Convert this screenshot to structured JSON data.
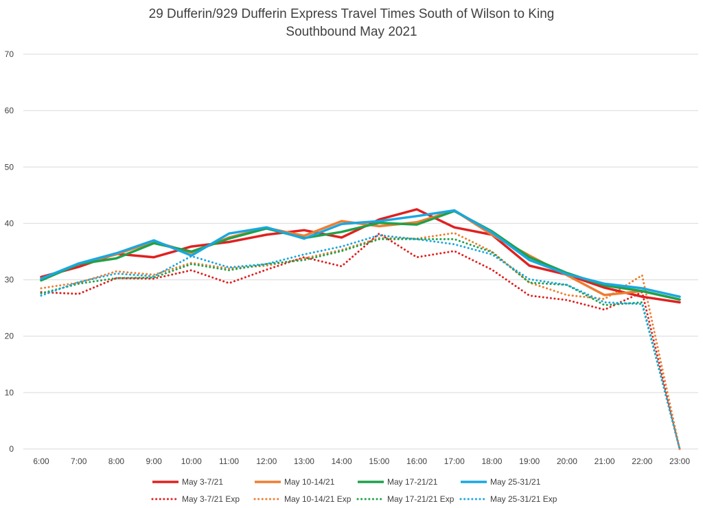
{
  "chart_data": {
    "type": "line",
    "title": "29 Dufferin/929 Dufferin Express Travel Times South of Wilson to King",
    "subtitle": "Southbound  May 2021",
    "xlabel": "",
    "ylabel": "",
    "ylim": [
      0,
      70
    ],
    "yticks": [
      0,
      10,
      20,
      30,
      40,
      50,
      60,
      70
    ],
    "grid": true,
    "legend_position": "bottom",
    "categories": [
      "6:00",
      "7:00",
      "8:00",
      "9:00",
      "10:00",
      "11:00",
      "12:00",
      "13:00",
      "14:00",
      "15:00",
      "16:00",
      "17:00",
      "18:00",
      "19:00",
      "20:00",
      "21:00",
      "22:00",
      "23:00"
    ],
    "series": [
      {
        "name": "May 3-7/21",
        "color": "#e02020",
        "style": "solid",
        "values": [
          30.5,
          32.3,
          34.6,
          34.0,
          35.9,
          36.7,
          38.0,
          38.8,
          37.5,
          40.7,
          42.5,
          39.3,
          38.0,
          32.5,
          30.9,
          28.6,
          27.0,
          26.0
        ]
      },
      {
        "name": "May 10-14/21",
        "color": "#ed7d31",
        "style": "solid",
        "values": [
          30.0,
          32.8,
          34.5,
          36.8,
          34.8,
          37.5,
          39.2,
          37.8,
          40.4,
          39.5,
          40.2,
          42.3,
          38.0,
          34.3,
          30.8,
          27.3,
          28.0,
          26.5
        ]
      },
      {
        "name": "May 17-21/21",
        "color": "#1fa14a",
        "style": "solid",
        "values": [
          29.9,
          32.8,
          33.8,
          36.5,
          35.0,
          37.3,
          39.1,
          37.4,
          38.5,
          40.1,
          39.8,
          42.2,
          38.6,
          34.0,
          31.2,
          29.0,
          28.0,
          26.5
        ]
      },
      {
        "name": "May 25-31/21",
        "color": "#1aa7e0",
        "style": "solid",
        "values": [
          30.2,
          32.9,
          34.7,
          37.0,
          34.3,
          38.2,
          39.3,
          37.3,
          39.9,
          40.4,
          41.3,
          42.3,
          38.4,
          33.5,
          31.0,
          29.3,
          28.5,
          27.0
        ]
      },
      {
        "name": "May 3-7/21 Exp",
        "color": "#e02020",
        "style": "dotted",
        "values": [
          27.8,
          27.5,
          30.3,
          30.2,
          31.7,
          29.4,
          31.8,
          34.0,
          32.4,
          38.2,
          34.0,
          35.1,
          31.8,
          27.2,
          26.4,
          24.7,
          27.8,
          0
        ]
      },
      {
        "name": "May 10-14/21 Exp",
        "color": "#ed7d31",
        "style": "dotted",
        "values": [
          28.5,
          29.5,
          31.5,
          30.9,
          33.0,
          32.0,
          32.5,
          33.8,
          35.3,
          37.4,
          37.3,
          38.3,
          35.0,
          29.5,
          27.3,
          26.6,
          30.8,
          0
        ]
      },
      {
        "name": "May 17-21/21 Exp",
        "color": "#1fa14a",
        "style": "dotted",
        "values": [
          27.6,
          29.3,
          30.3,
          30.4,
          32.8,
          31.7,
          32.8,
          33.5,
          35.1,
          37.2,
          37.2,
          37.2,
          34.9,
          29.5,
          29.1,
          25.5,
          26.0,
          0
        ]
      },
      {
        "name": "May 25-31/21 Exp",
        "color": "#1aa7e0",
        "style": "dotted",
        "values": [
          27.2,
          29.6,
          31.1,
          30.6,
          34.2,
          32.2,
          32.8,
          34.5,
          35.9,
          37.9,
          37.2,
          36.3,
          34.5,
          30.1,
          29.1,
          26.0,
          25.7,
          0
        ]
      }
    ]
  }
}
